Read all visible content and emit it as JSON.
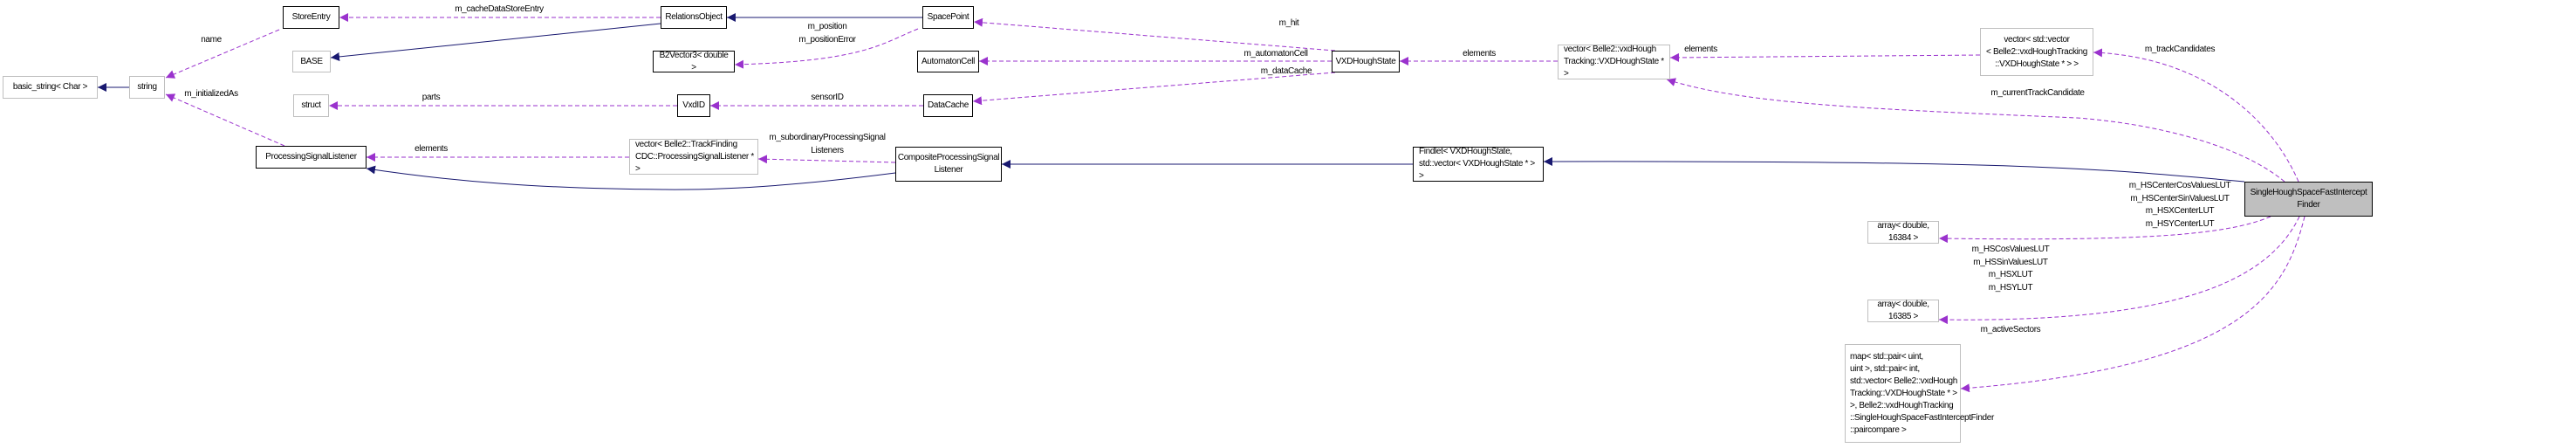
{
  "colors": {
    "member_edge": "#9a32cd",
    "inheritance_edge": "#191970",
    "focus_node_fill": "#bfbfbf",
    "external_border": "#bfbfbf"
  },
  "nodes": {
    "basic_string": "basic_string< Char >",
    "string": "string",
    "store_entry": "StoreEntry",
    "base": "BASE",
    "struct": "struct",
    "psl": "ProcessingSignalListener",
    "relations_object": "RelationsObject",
    "b2vector3": "B2Vector3< double >",
    "vxdid": "VxdID",
    "vector_psl": "vector< Belle2::TrackFinding\nCDC::ProcessingSignalListener * >",
    "space_point": "SpacePoint",
    "automaton_cell": "AutomatonCell",
    "data_cache": "DataCache",
    "composite_psl": "CompositeProcessingSignal\nListener",
    "vxd_hough_state": "VXDHoughState",
    "vector_vxd": "vector< Belle2::vxdHough\nTracking::VXDHoughState * >",
    "findlet": "Findlet< VXDHoughState,\n std::vector< VXDHoughState * > >",
    "vector_vector": "vector< std::vector\n< Belle2::vxdHoughTracking\n::VXDHoughState * > >",
    "main": "SingleHoughSpaceFastIntercept\nFinder",
    "array_16384": "array< double, 16384 >",
    "array_16385": "array< double, 16385 >",
    "map": "map< std::pair< uint,\n uint >, std::pair< int,\n std::vector< Belle2::vxdHough\nTracking::VXDHoughState * >\n >, Belle2::vxdHoughTracking\n::SingleHoughSpaceFastInterceptFinder\n::paircompare >"
  },
  "edge_labels": {
    "name": "name",
    "initialized_as": "m_initializedAs",
    "cache_data_store_entry": "m_cacheDataStoreEntry",
    "parts": "parts",
    "psl_elements": "elements",
    "position": "m_position\nm_positionError",
    "sensor_id": "sensorID",
    "subordinary": "m_subordinaryProcessingSignal\nListeners",
    "hit": "m_hit",
    "automaton_cell": "m_automatonCell",
    "data_cache": "m_dataCache",
    "vxd_elements": "elements",
    "vv_elements": "elements",
    "track_candidates": "m_trackCandidates",
    "current_track_candidate": "m_currentTrackCandidate",
    "center_luts": "m_HSCenterCosValuesLUT\nm_HSCenterSinValuesLUT\nm_HSXCenterLUT\nm_HSYCenterLUT",
    "luts": "m_HSCosValuesLUT\nm_HSSinValuesLUT\nm_HSXLUT\nm_HSYLUT",
    "active_sectors": "m_activeSectors"
  }
}
